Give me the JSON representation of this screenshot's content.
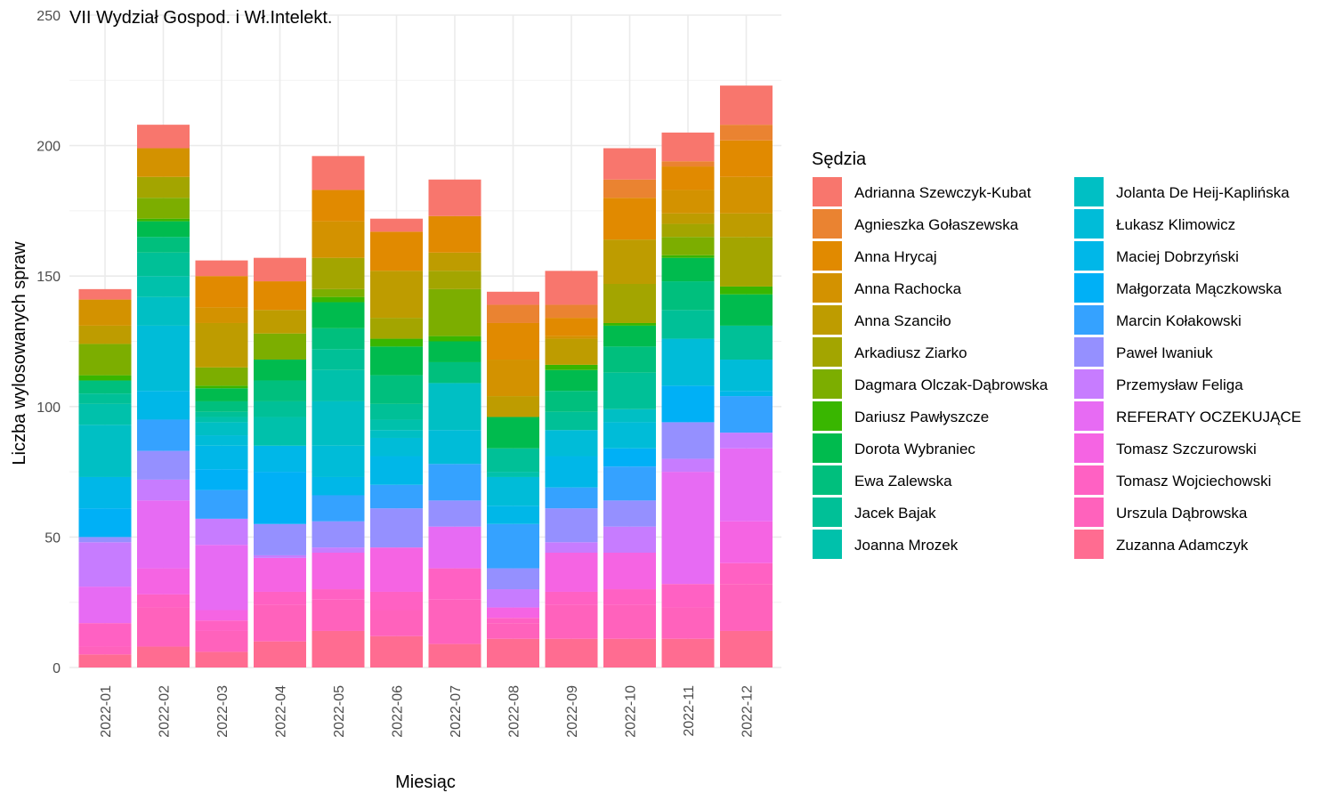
{
  "chart_data": {
    "type": "bar",
    "stacked": true,
    "title": "VII Wydział Gospod. i Wł.Intelekt.",
    "xlabel": "Miesiąc",
    "ylabel": "Liczba wylosowanych spraw",
    "ylim": [
      0,
      250
    ],
    "yticks": [
      0,
      50,
      100,
      150,
      200,
      250
    ],
    "grid": true,
    "legend_title": "Sędzia",
    "legend_position": "right",
    "categories": [
      "2022-01",
      "2022-02",
      "2022-03",
      "2022-04",
      "2022-05",
      "2022-06",
      "2022-07",
      "2022-08",
      "2022-09",
      "2022-10",
      "2022-11",
      "2022-12"
    ],
    "series": [
      {
        "name": "Adrianna Szewczyk-Kubat",
        "color": "#F8766D",
        "values": [
          4,
          9,
          6,
          9,
          13,
          5,
          14,
          5,
          13,
          12,
          11,
          15
        ]
      },
      {
        "name": "Agnieszka Gołaszewska",
        "color": "#EA8331",
        "values": [
          0,
          0,
          0,
          0,
          0,
          0,
          0,
          7,
          5,
          7,
          2,
          6
        ]
      },
      {
        "name": "Anna Hrycaj",
        "color": "#E18A00",
        "values": [
          0,
          0,
          12,
          11,
          12,
          15,
          14,
          14,
          7,
          16,
          9,
          14
        ]
      },
      {
        "name": "Anna Rachocka",
        "color": "#D39200",
        "values": [
          10,
          11,
          6,
          0,
          14,
          0,
          0,
          14,
          1,
          0,
          9,
          14
        ]
      },
      {
        "name": "Anna Szanciło",
        "color": "#BE9C00",
        "values": [
          7,
          0,
          17,
          9,
          0,
          18,
          7,
          8,
          10,
          17,
          4,
          9
        ]
      },
      {
        "name": "Arkadiusz Ziarko",
        "color": "#A3A500",
        "values": [
          0,
          8,
          0,
          0,
          12,
          8,
          7,
          0,
          0,
          15,
          5,
          19
        ]
      },
      {
        "name": "Dagmara Olczak-Dąbrowska",
        "color": "#7CAE00",
        "values": [
          12,
          8,
          7,
          10,
          3,
          0,
          18,
          0,
          0,
          0,
          7,
          0
        ]
      },
      {
        "name": "Dariusz Pawłyszcze",
        "color": "#39B600",
        "values": [
          2,
          1,
          1,
          0,
          2,
          3,
          2,
          0,
          2,
          1,
          1,
          3
        ]
      },
      {
        "name": "Dorota Wybraniec",
        "color": "#00BB4E",
        "values": [
          0,
          6,
          5,
          8,
          10,
          11,
          8,
          12,
          8,
          8,
          9,
          12
        ]
      },
      {
        "name": "Ewa Zalewska",
        "color": "#00BF7D",
        "values": [
          5,
          6,
          4,
          8,
          8,
          11,
          8,
          0,
          8,
          10,
          11,
          0
        ]
      },
      {
        "name": "Jacek Bajak",
        "color": "#00C097",
        "values": [
          4,
          9,
          2,
          6,
          8,
          6,
          0,
          9,
          7,
          14,
          11,
          13
        ]
      },
      {
        "name": "Joanna Mrozek",
        "color": "#00C1AB",
        "values": [
          8,
          8,
          2,
          11,
          12,
          4,
          0,
          2,
          0,
          0,
          0,
          0
        ]
      },
      {
        "name": "Jolanta De Heij-Kaplińska",
        "color": "#00BFC4",
        "values": [
          20,
          11,
          5,
          0,
          17,
          3,
          18,
          0,
          0,
          5,
          0,
          0
        ]
      },
      {
        "name": "Łukasz Klimowicz",
        "color": "#00BCD8",
        "values": [
          0,
          25,
          4,
          0,
          12,
          7,
          13,
          11,
          10,
          10,
          18,
          12
        ]
      },
      {
        "name": "Maciej Dobrzyński",
        "color": "#00B7E8",
        "values": [
          12,
          11,
          9,
          10,
          7,
          11,
          0,
          7,
          12,
          0,
          0,
          2
        ]
      },
      {
        "name": "Małgorzata Mączkowska",
        "color": "#00B0F6",
        "values": [
          11,
          0,
          8,
          20,
          0,
          0,
          0,
          0,
          0,
          7,
          14,
          0
        ]
      },
      {
        "name": "Marcin Kołakowski",
        "color": "#35A2FF",
        "values": [
          0,
          12,
          11,
          0,
          10,
          9,
          14,
          17,
          8,
          13,
          0,
          14
        ]
      },
      {
        "name": "Paweł Iwaniuk",
        "color": "#9590FF",
        "values": [
          2,
          11,
          0,
          12,
          10,
          15,
          10,
          8,
          13,
          10,
          14,
          0
        ]
      },
      {
        "name": "Przemysław Feliga",
        "color": "#C77CFF",
        "values": [
          17,
          8,
          10,
          1,
          2,
          0,
          0,
          7,
          4,
          10,
          5,
          6
        ]
      },
      {
        "name": "REFERATY OCZEKUJĄCE",
        "color": "#E76BF3",
        "values": [
          14,
          26,
          25,
          0,
          0,
          0,
          16,
          0,
          0,
          0,
          43,
          28
        ]
      },
      {
        "name": "Tomasz Szczurowski",
        "color": "#F564E3",
        "values": [
          0,
          10,
          4,
          13,
          14,
          17,
          0,
          4,
          15,
          14,
          0,
          16
        ]
      },
      {
        "name": "Tomasz Wojciechowski",
        "color": "#FF61C3",
        "values": [
          9,
          5,
          4,
          5,
          4,
          7,
          12,
          2,
          5,
          6,
          9,
          8
        ]
      },
      {
        "name": "Urszula Dąbrowska",
        "color": "#FF62BC",
        "values": [
          3,
          15,
          8,
          14,
          12,
          10,
          17,
          6,
          13,
          13,
          12,
          18
        ]
      },
      {
        "name": "Zuzanna Adamczyk",
        "color": "#FF6C91",
        "values": [
          5,
          8,
          6,
          10,
          14,
          12,
          9,
          11,
          11,
          11,
          11,
          14
        ]
      }
    ]
  }
}
